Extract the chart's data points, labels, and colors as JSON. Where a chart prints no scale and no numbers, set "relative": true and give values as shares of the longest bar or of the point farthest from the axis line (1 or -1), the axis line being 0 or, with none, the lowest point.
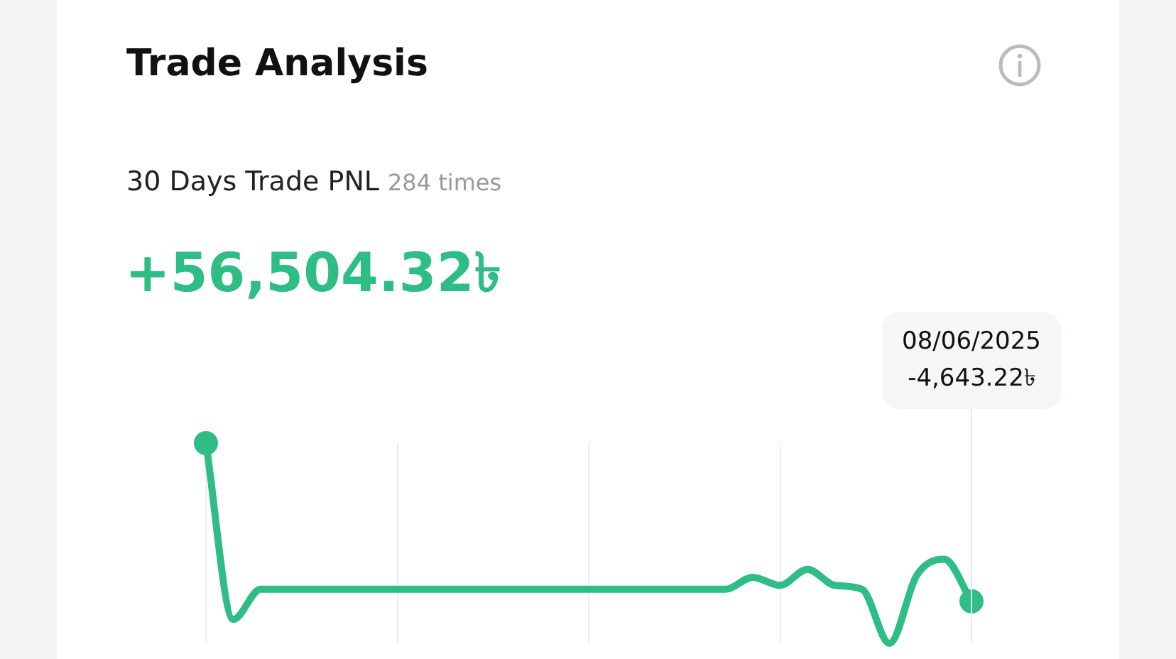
{
  "chart_data": {
    "type": "line",
    "title": "Trade Analysis",
    "subtitle": "30 Days Trade PNL",
    "relative": true,
    "grid": "x",
    "color": "#2ebd85",
    "categories": [
      null,
      null,
      null,
      null,
      null,
      null,
      null,
      null,
      null,
      null,
      null,
      null,
      null,
      null,
      null,
      null,
      null,
      null,
      null,
      null,
      null,
      null,
      null,
      null,
      null,
      null,
      null,
      null,
      null
    ],
    "values": [
      1,
      0.12,
      0.27,
      0.27,
      0.27,
      0.27,
      0.27,
      0.27,
      0.27,
      0.27,
      0.27,
      0.27,
      0.27,
      0.27,
      0.27,
      0.27,
      0.27,
      0.27,
      0.27,
      0.27,
      0.33,
      0.29,
      0.37,
      0.29,
      0.27,
      0,
      0.34,
      0.42,
      0.21
    ],
    "annotations": [
      "284 times",
      "+56,504.32৳",
      "08/06/2025",
      "-4,643.22৳"
    ]
  }
}
